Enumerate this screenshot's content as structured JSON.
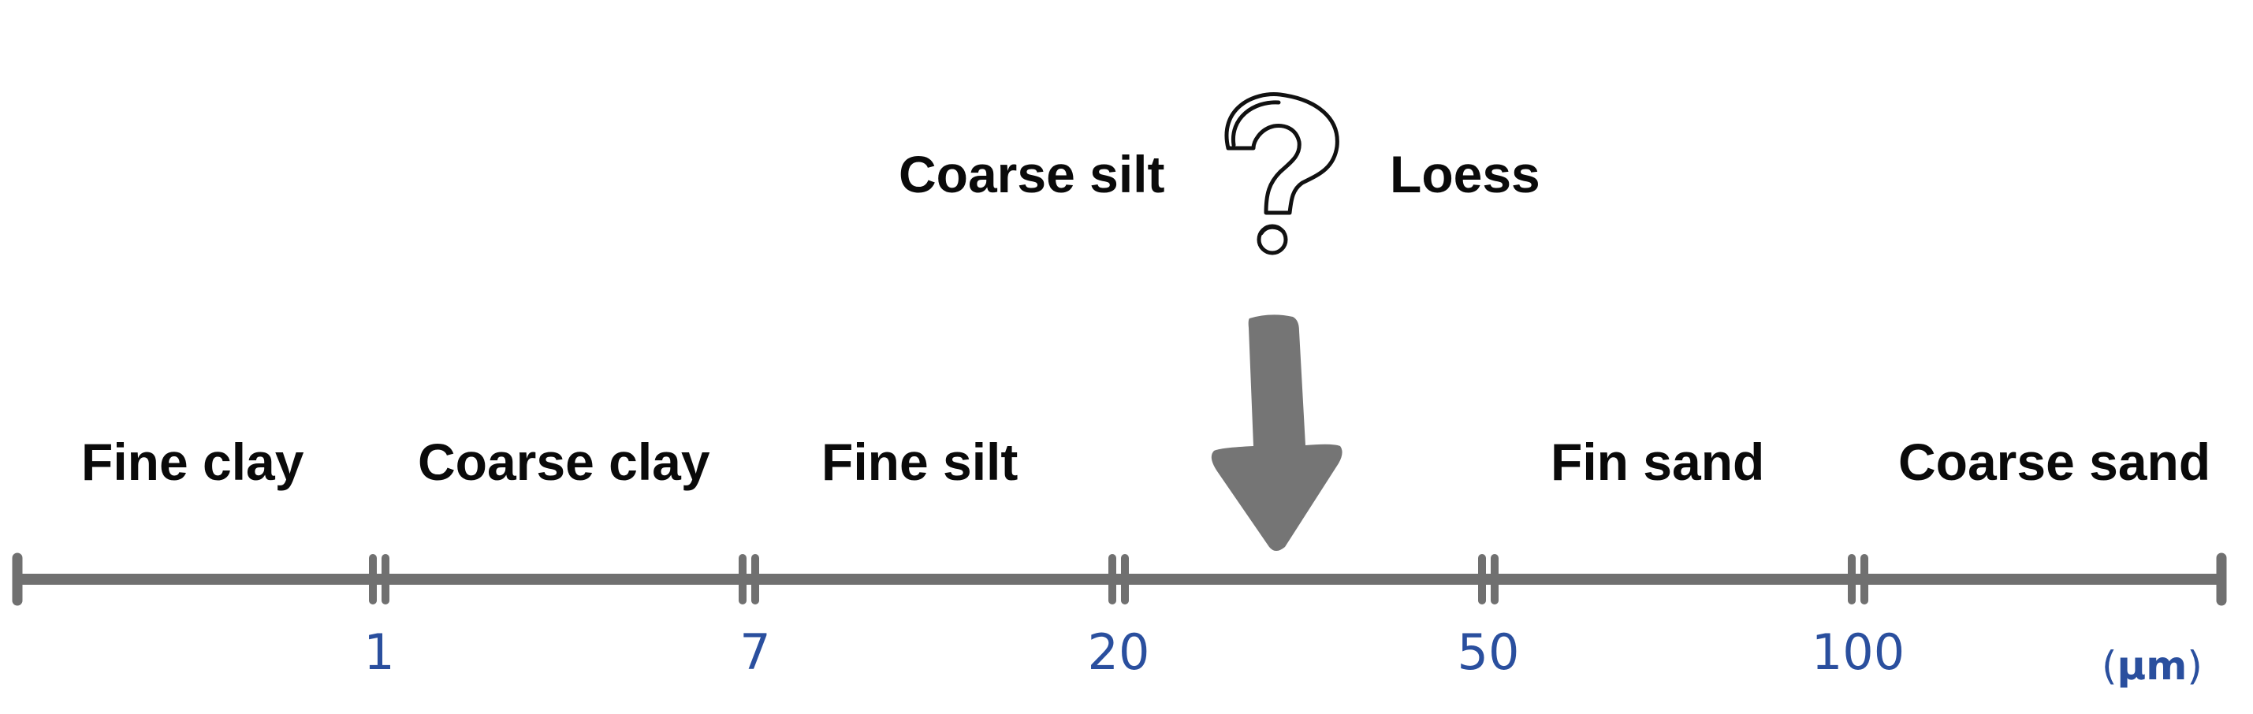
{
  "top_labels": {
    "left": "Coarse silt",
    "right": "Loess"
  },
  "categories": [
    "Fine clay",
    "Coarse clay",
    "Fine silt",
    "Fin sand",
    "Coarse sand"
  ],
  "ticks": [
    "1",
    "7",
    "20",
    "50",
    "100"
  ],
  "unit": {
    "open": "(",
    "symbol": "µm",
    "close": ")"
  },
  "icons": {
    "question": "question-mark-icon",
    "arrow": "down-arrow-icon"
  },
  "colors": {
    "axis": "#707070",
    "arrow": "#757575",
    "tick_text": "#2a4f9e",
    "label_text": "#0a0a0a"
  }
}
